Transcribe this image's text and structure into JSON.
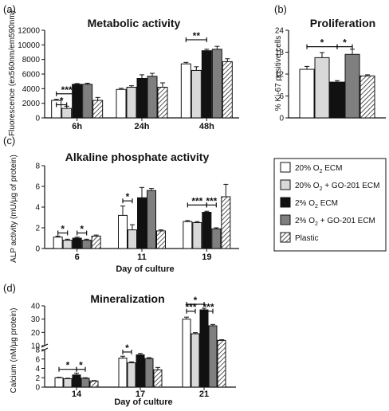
{
  "legend": {
    "items": [
      {
        "key": "w20",
        "label_main": "20% O",
        "label_sub": "2",
        "label_rest": " ECM"
      },
      {
        "key": "l20",
        "label_main": "20% O",
        "label_sub": "2",
        "label_rest": " + GO-201 ECM"
      },
      {
        "key": "k2",
        "label_main": "2% O",
        "label_sub": "2",
        "label_rest": " ECM"
      },
      {
        "key": "g2",
        "label_main": "2% O",
        "label_sub": "2",
        "label_rest": " + GO-201 ECM"
      },
      {
        "key": "pl",
        "label_main": "Plastic",
        "label_sub": "",
        "label_rest": ""
      }
    ]
  },
  "styles": {
    "w20": {
      "fill": "#ffffff"
    },
    "l20": {
      "fill": "#d9d9d9"
    },
    "k2": {
      "fill": "#111111"
    },
    "g2": {
      "fill": "#7f7f7f"
    },
    "pl": {
      "fill": "hatch"
    }
  },
  "chart_data": [
    {
      "panel": "(a)",
      "type": "bar",
      "title": "Metabolic activity",
      "ylabel": "Fluorescence (ex560nm/em590nm)",
      "xlabel": "",
      "ylim": [
        0,
        12000
      ],
      "yticks": [
        "0",
        "2000",
        "4000",
        "6000",
        "8000",
        "10000",
        "12000"
      ],
      "categories": [
        "6h",
        "24h",
        "48h"
      ],
      "series": [
        {
          "key": "w20",
          "values": [
            2400,
            3900,
            7400
          ],
          "err": [
            150,
            150,
            200
          ]
        },
        {
          "key": "l20",
          "values": [
            1300,
            4200,
            6500
          ],
          "err": [
            300,
            200,
            500
          ]
        },
        {
          "key": "k2",
          "values": [
            4600,
            5400,
            9200
          ],
          "err": [
            100,
            500,
            200
          ]
        },
        {
          "key": "g2",
          "values": [
            4600,
            5700,
            9400
          ],
          "err": [
            150,
            400,
            400
          ]
        },
        {
          "key": "pl",
          "values": [
            2400,
            4200,
            7700
          ],
          "err": [
            400,
            600,
            400
          ]
        }
      ],
      "sig": [
        {
          "text": "***",
          "cat": 0,
          "from": 0,
          "to": 2,
          "level": 3300
        },
        {
          "text": "*",
          "cat": 0,
          "from": 0,
          "to": 1,
          "level": 1800
        },
        {
          "text": "**",
          "cat": 2,
          "from": 0,
          "to": 2,
          "level": 10700
        }
      ]
    },
    {
      "panel": "(b)",
      "type": "bar",
      "title": "Proliferation",
      "ylabel": "% Ki-67 positive cells",
      "xlabel": "",
      "ylim": [
        0,
        24
      ],
      "yticks": [
        "0",
        "6",
        "12",
        "18",
        "24"
      ],
      "categories": [
        ""
      ],
      "series": [
        {
          "key": "w20",
          "values": [
            13.3
          ],
          "err": [
            0.8
          ]
        },
        {
          "key": "l20",
          "values": [
            16.5
          ],
          "err": [
            1.4
          ]
        },
        {
          "key": "k2",
          "values": [
            9.8
          ],
          "err": [
            0.4
          ]
        },
        {
          "key": "g2",
          "values": [
            17.4
          ],
          "err": [
            1.4
          ]
        },
        {
          "key": "pl",
          "values": [
            11.5
          ],
          "err": [
            0.3
          ]
        }
      ],
      "sig": [
        {
          "text": "*",
          "cat": 0,
          "from": 0,
          "to": 2,
          "level": 19.5
        },
        {
          "text": "*",
          "cat": 0,
          "from": 2,
          "to": 3,
          "level": 19.5
        }
      ]
    },
    {
      "panel": "(c)",
      "type": "bar",
      "title": "Alkaline phosphate activity",
      "ylabel": "ALP activity (mU/µg of protein)",
      "xlabel": "Day of culture",
      "ylim": [
        0,
        8
      ],
      "yticks": [
        "0",
        "2",
        "4",
        "6",
        "8"
      ],
      "categories": [
        "6",
        "11",
        "19"
      ],
      "series": [
        {
          "key": "w20",
          "values": [
            1.1,
            3.2,
            2.6
          ],
          "err": [
            0.1,
            0.9,
            0.1
          ]
        },
        {
          "key": "l20",
          "values": [
            0.8,
            1.8,
            2.5
          ],
          "err": [
            0.1,
            0.5,
            0.1
          ]
        },
        {
          "key": "k2",
          "values": [
            1.0,
            4.9,
            3.5
          ],
          "err": [
            0.1,
            1.0,
            0.1
          ]
        },
        {
          "key": "g2",
          "values": [
            0.8,
            5.6,
            1.9
          ],
          "err": [
            0.1,
            0.2,
            0.1
          ]
        },
        {
          "key": "pl",
          "values": [
            1.2,
            1.7,
            5.0
          ],
          "err": [
            0.1,
            0.1,
            1.2
          ]
        }
      ],
      "sig": [
        {
          "text": "*",
          "cat": 0,
          "from": 0,
          "to": 1,
          "level": 1.5
        },
        {
          "text": "*",
          "cat": 0,
          "from": 2,
          "to": 3,
          "level": 1.5
        },
        {
          "text": "*",
          "cat": 1,
          "from": 0,
          "to": 1,
          "level": 4.6
        },
        {
          "text": "***",
          "cat": 2,
          "from": 0,
          "to": 2,
          "level": 4.2
        },
        {
          "text": "***",
          "cat": 2,
          "from": 2,
          "to": 3,
          "level": 4.2
        }
      ]
    },
    {
      "panel": "(d)",
      "type": "bar",
      "title": "Mineralization",
      "ylabel": "Calcium (nM/µg protein)",
      "xlabel": "Day of culture",
      "axis_break": true,
      "lower_ylim": [
        0,
        8
      ],
      "lower_yticks": [
        "0",
        "2",
        "4",
        "6",
        "8"
      ],
      "upper_ylim": [
        10,
        40
      ],
      "upper_yticks": [
        "10",
        "20",
        "30",
        "40"
      ],
      "categories": [
        "14",
        "17",
        "21"
      ],
      "series": [
        {
          "key": "w20",
          "values": [
            2.0,
            6.2,
            30
          ],
          "err": [
            0.1,
            0.4,
            1.5
          ]
        },
        {
          "key": "l20",
          "values": [
            1.8,
            5.2,
            19
          ],
          "err": [
            0.1,
            0.2,
            0.8
          ]
        },
        {
          "key": "k2",
          "values": [
            2.6,
            6.9,
            37
          ],
          "err": [
            0.4,
            0.3,
            1.2
          ]
        },
        {
          "key": "g2",
          "values": [
            1.9,
            6.1,
            25
          ],
          "err": [
            0.1,
            0.2,
            1.0
          ]
        },
        {
          "key": "pl",
          "values": [
            1.3,
            3.7,
            14
          ],
          "err": [
            0.1,
            0.5,
            0.5
          ]
        }
      ],
      "sig": [
        {
          "text": "*",
          "cat": 0,
          "from": 0,
          "to": 2,
          "level": 3.8
        },
        {
          "text": "*",
          "cat": 0,
          "from": 2,
          "to": 3,
          "level": 3.8
        },
        {
          "text": "*",
          "cat": 1,
          "from": 0,
          "to": 1,
          "level": 7.5
        },
        {
          "text": "*",
          "cat": 2,
          "from": 0,
          "to": 2,
          "level": 46
        },
        {
          "text": "***",
          "cat": 2,
          "from": 0,
          "to": 1,
          "level": 36
        },
        {
          "text": "***",
          "cat": 2,
          "from": 2,
          "to": 3,
          "level": 36
        }
      ]
    }
  ]
}
